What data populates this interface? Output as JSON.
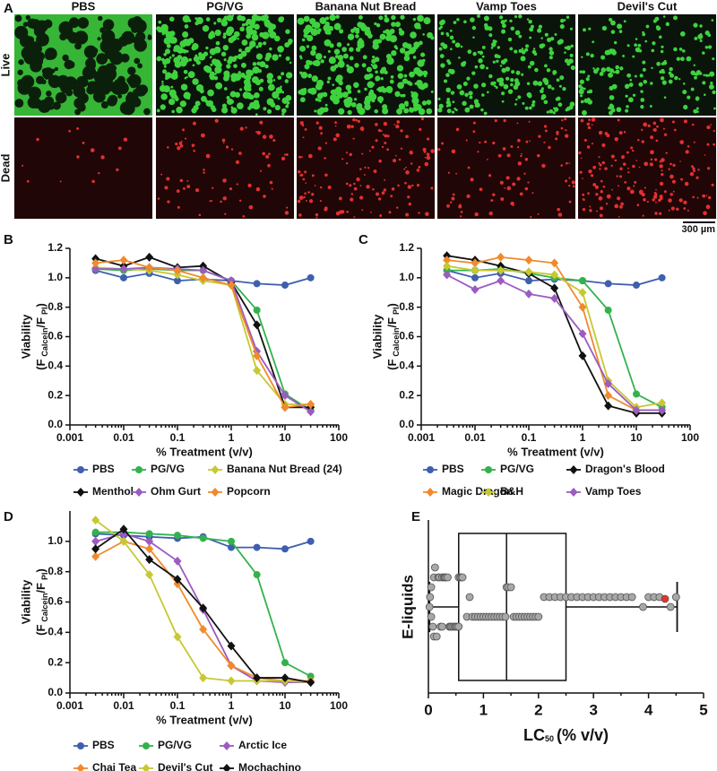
{
  "panel_a": {
    "label": "A",
    "columns": [
      "PBS",
      "PG/VG",
      "Banana Nut Bread",
      "Vamp Toes",
      "Devil's Cut"
    ],
    "rows": [
      "Live",
      "Dead"
    ],
    "scale_bar": "300 µm"
  },
  "chart_data": [
    {
      "type": "line",
      "label": "B",
      "log_x": true,
      "x_label": "% Treatment (v/v)",
      "y_label": [
        {
          "text": "Viability"
        },
        {
          "text": "(F"
        },
        {
          "text": "Calcein",
          "sub": true
        },
        {
          "text": "/F"
        },
        {
          "text": "PI",
          "sub": true
        },
        {
          "text": ")"
        }
      ],
      "x": [
        0.003,
        0.01,
        0.03,
        0.1,
        0.3,
        1,
        3,
        10,
        30
      ],
      "xlim": [
        0.001,
        100
      ],
      "xticks": [
        0.001,
        0.01,
        0.1,
        1,
        10,
        100
      ],
      "ylim": [
        0,
        1.2
      ],
      "yticks": [
        {
          "value": 0,
          "label": "0.0"
        },
        0.2,
        0.4,
        0.6,
        0.8,
        {
          "value": 1,
          "label": "1.0"
        },
        1.2
      ],
      "series": [
        {
          "name": "PBS",
          "color": "#3f5fae",
          "marker": "circle",
          "values": [
            1.05,
            1.0,
            1.03,
            0.98,
            0.99,
            0.98,
            0.96,
            0.95,
            1.0
          ]
        },
        {
          "name": "PG/VG",
          "color": "#33b24c",
          "marker": "circle",
          "values": [
            1.06,
            1.05,
            1.06,
            1.05,
            1.05,
            0.98,
            0.78,
            0.21,
            0.1
          ]
        },
        {
          "name": "Banana Nut Bread (24)",
          "color": "#c7c832",
          "marker": "diamond",
          "values": [
            1.07,
            1.06,
            1.05,
            1.02,
            0.98,
            0.95,
            0.37,
            0.14,
            0.14
          ]
        },
        {
          "name": "Menthol",
          "color": "#111111",
          "marker": "diamond",
          "values": [
            1.13,
            1.08,
            1.14,
            1.07,
            1.08,
            0.97,
            0.68,
            0.12,
            0.12
          ]
        },
        {
          "name": "Ohm Gurt",
          "color": "#9b5cc0",
          "marker": "diamond",
          "values": [
            1.06,
            1.06,
            1.07,
            1.06,
            1.05,
            0.98,
            0.5,
            0.2,
            0.09
          ]
        },
        {
          "name": "Popcorn",
          "color": "#f08a2c",
          "marker": "diamond",
          "values": [
            1.1,
            1.12,
            1.07,
            1.05,
            1.0,
            0.95,
            0.47,
            0.12,
            0.14
          ]
        }
      ]
    },
    {
      "type": "line",
      "label": "C",
      "log_x": true,
      "x_label": "% Treatment (v/v)",
      "y_label": [
        {
          "text": "Viability"
        },
        {
          "text": "(F"
        },
        {
          "text": "Calcein",
          "sub": true
        },
        {
          "text": "/F"
        },
        {
          "text": "PI",
          "sub": true
        },
        {
          "text": ")"
        }
      ],
      "x": [
        0.003,
        0.01,
        0.03,
        0.1,
        0.3,
        1,
        3,
        10,
        30
      ],
      "xlim": [
        0.001,
        100
      ],
      "xticks": [
        0.001,
        0.01,
        0.1,
        1,
        10,
        100
      ],
      "ylim": [
        0,
        1.2
      ],
      "yticks": [
        {
          "value": 0,
          "label": "0.0"
        },
        0.2,
        0.4,
        0.6,
        0.8,
        {
          "value": 1,
          "label": "1.0"
        },
        1.2
      ],
      "series": [
        {
          "name": "PBS",
          "color": "#3f5fae",
          "marker": "circle",
          "values": [
            1.05,
            1.0,
            1.03,
            0.98,
            0.99,
            0.98,
            0.96,
            0.95,
            1.0
          ]
        },
        {
          "name": "PG/VG",
          "color": "#33b24c",
          "marker": "circle",
          "values": [
            1.05,
            1.05,
            1.06,
            1.03,
            1.0,
            0.98,
            0.78,
            0.21,
            0.12
          ]
        },
        {
          "name": "Dragon's Blood",
          "color": "#111111",
          "marker": "diamond",
          "values": [
            1.15,
            1.12,
            1.08,
            1.03,
            0.93,
            0.47,
            0.13,
            0.08,
            0.08
          ]
        },
        {
          "name": "Magic Dragon",
          "color": "#f08a2c",
          "marker": "diamond",
          "values": [
            1.12,
            1.1,
            1.14,
            1.12,
            1.1,
            0.8,
            0.2,
            0.1,
            0.1
          ]
        },
        {
          "name": "B&H",
          "color": "#c7c832",
          "marker": "diamond",
          "values": [
            1.08,
            1.05,
            1.05,
            1.04,
            1.02,
            0.9,
            0.3,
            0.12,
            0.15
          ]
        },
        {
          "name": "Vamp Toes",
          "color": "#9b5cc0",
          "marker": "diamond",
          "values": [
            1.02,
            0.92,
            0.98,
            0.89,
            0.86,
            0.62,
            0.28,
            0.1,
            0.1
          ]
        }
      ]
    },
    {
      "type": "line",
      "label": "D",
      "log_x": true,
      "x_label": "% Treatment (v/v)",
      "y_label": [
        {
          "text": "Viability"
        },
        {
          "text": "(F"
        },
        {
          "text": "Calcein",
          "sub": true
        },
        {
          "text": "/F"
        },
        {
          "text": "PI",
          "sub": true
        },
        {
          "text": ")"
        }
      ],
      "x": [
        0.003,
        0.01,
        0.03,
        0.1,
        0.3,
        1,
        3,
        10,
        30
      ],
      "xlim": [
        0.001,
        100
      ],
      "xticks": [
        0.001,
        0.01,
        0.1,
        1,
        10,
        100
      ],
      "ylim": [
        0,
        1.2
      ],
      "yticks": [
        {
          "value": 0,
          "label": "0.0"
        },
        0.2,
        0.4,
        0.6,
        0.8,
        {
          "value": 1,
          "label": "1.0"
        }
      ],
      "series": [
        {
          "name": "PBS",
          "color": "#3f5fae",
          "marker": "circle",
          "values": [
            1.05,
            1.04,
            1.03,
            1.02,
            1.03,
            0.96,
            0.96,
            0.95,
            1.0
          ]
        },
        {
          "name": "PG/VG",
          "color": "#33b24c",
          "marker": "circle",
          "values": [
            1.06,
            1.06,
            1.05,
            1.04,
            1.02,
            1.0,
            0.78,
            0.2,
            0.11
          ]
        },
        {
          "name": "Arctic Ice",
          "color": "#9b5cc0",
          "marker": "diamond",
          "values": [
            1.0,
            1.05,
            1.0,
            0.87,
            0.55,
            0.18,
            0.08,
            0.07,
            0.07
          ]
        },
        {
          "name": "Chai Tea",
          "color": "#f08a2c",
          "marker": "diamond",
          "values": [
            0.9,
            1.0,
            0.95,
            0.72,
            0.42,
            0.18,
            0.1,
            0.08,
            0.08
          ]
        },
        {
          "name": "Devil's Cut",
          "color": "#c7c832",
          "marker": "diamond",
          "values": [
            1.14,
            1.0,
            0.78,
            0.37,
            0.1,
            0.08,
            0.08,
            0.08,
            0.07
          ]
        },
        {
          "name": "Mochachino",
          "color": "#111111",
          "marker": "diamond",
          "values": [
            0.95,
            1.08,
            0.88,
            0.75,
            0.56,
            0.31,
            0.1,
            0.1,
            0.07
          ]
        }
      ]
    },
    {
      "type": "box",
      "label": "E",
      "x_label": [
        {
          "text": "LC"
        },
        {
          "text": "50",
          "sub": true
        },
        {
          "text": "(% v/v)"
        }
      ],
      "y_label": "E-liquids",
      "xlim": [
        0,
        5
      ],
      "xticks": [
        0,
        1,
        2,
        3,
        4,
        5
      ],
      "box": {
        "min": 0.02,
        "q1": 0.55,
        "median": 1.42,
        "q3": 2.5,
        "max": 4.52
      },
      "color": "#a8a8a8",
      "values": [
        0.02,
        0.03,
        0.05,
        0.05,
        0.08,
        0.1,
        0.1,
        0.12,
        0.15,
        0.18,
        0.2,
        0.22,
        0.25,
        0.25,
        0.28,
        0.3,
        0.32,
        0.35,
        0.38,
        0.4,
        0.42,
        0.45,
        0.48,
        0.5,
        0.52,
        0.55,
        0.55,
        0.58,
        0.6,
        0.62,
        0.7,
        0.75,
        0.8,
        0.85,
        0.9,
        0.95,
        1.0,
        1.05,
        1.1,
        1.15,
        1.2,
        1.25,
        1.3,
        1.35,
        1.4,
        1.42,
        1.45,
        1.5,
        1.55,
        1.6,
        1.65,
        1.7,
        1.75,
        1.8,
        1.85,
        1.9,
        1.95,
        2.0,
        2.1,
        2.2,
        2.3,
        2.4,
        2.5,
        2.6,
        2.7,
        2.8,
        2.9,
        3.0,
        3.1,
        3.2,
        3.3,
        3.4,
        3.5,
        3.6,
        3.7,
        3.9,
        4.0,
        4.1,
        4.2,
        4.4,
        4.5
      ],
      "highlight": {
        "values": [
          4.3
        ],
        "color": "#e8322a"
      }
    }
  ]
}
